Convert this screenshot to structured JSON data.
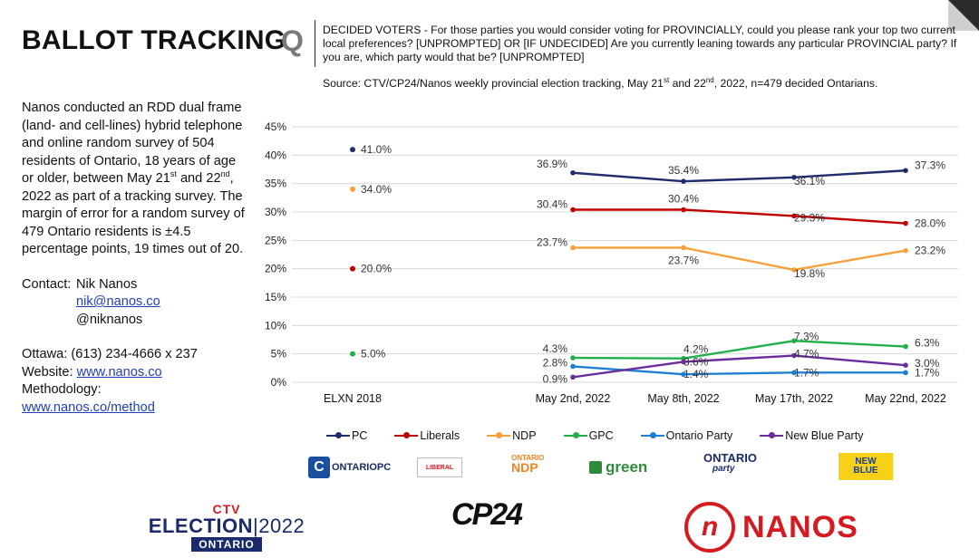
{
  "header": {
    "title": "BALLOT TRACKING",
    "q_mark": "Q",
    "question": "DECIDED VOTERS - For those parties you would consider voting for PROVINCIALLY, could you please rank your top two current local preferences? [UNPROMPTED] OR [IF UNDECIDED] Are you currently leaning towards any particular PROVINCIAL party? If you are, which party would that be? [UNPROMPTED]",
    "source_prefix": "Source: CTV/CP24/Nanos weekly provincial election tracking, May 21",
    "source_sup1": "st",
    "source_mid": " and 22",
    "source_sup2": "nd",
    "source_suffix": ", 2022, n=479 decided Ontarians."
  },
  "methodology": {
    "p1": "Nanos conducted an RDD dual frame (land- and cell-lines) hybrid telephone and online random survey of 504 residents of Ontario, 18 years of age or older, between May 21",
    "sup1": "st",
    "p2": " and 22",
    "sup2": "nd",
    "p3": ", 2022 as part of a tracking survey. The margin of error for a random survey of 479 Ontario residents is ±4.5 percentage points, 19 times out of 20."
  },
  "contact": {
    "label": "Contact:",
    "name": "Nik Nanos",
    "email": "nik@nanos.co",
    "handle": "@niknanos",
    "ottawa": "Ottawa: (613) 234-4666 x 237",
    "website_label": "Website: ",
    "website": "www.nanos.co",
    "methodology_label": "Methodology:",
    "methodology_url": "www.nanos.co/method"
  },
  "chart_data": {
    "type": "line",
    "title": "",
    "xlabel": "",
    "ylabel": "",
    "ylim": [
      0,
      45
    ],
    "yticks": [
      "0%",
      "5%",
      "10%",
      "15%",
      "20%",
      "25%",
      "30%",
      "35%",
      "40%",
      "45%"
    ],
    "grid": true,
    "baseline": {
      "label": "ELXN 2018",
      "points": [
        {
          "series": "PC",
          "value": 41.0,
          "label": "41.0%"
        },
        {
          "series": "NDP",
          "value": 34.0,
          "label": "34.0%"
        },
        {
          "series": "Liberals",
          "value": 20.0,
          "label": "20.0%"
        },
        {
          "series": "GPC",
          "value": 5.0,
          "label": "5.0%"
        }
      ]
    },
    "categories": [
      "May 2nd, 2022",
      "May 8th, 2022",
      "May 17th, 2022",
      "May 22nd, 2022"
    ],
    "series": [
      {
        "name": "PC",
        "color": "#1f2d6b",
        "values": [
          36.9,
          35.4,
          36.1,
          37.3
        ],
        "labels": [
          "36.9%",
          "35.4%",
          "36.1%",
          "37.3%"
        ]
      },
      {
        "name": "Liberals",
        "color": "#c00000",
        "values": [
          30.4,
          30.4,
          29.3,
          28.0
        ],
        "labels": [
          "30.4%",
          "30.4%",
          "29.3%",
          "28.0%"
        ]
      },
      {
        "name": "NDP",
        "color": "#f7a03a",
        "values": [
          23.7,
          23.7,
          19.8,
          23.2
        ],
        "labels": [
          "23.7%",
          "23.7%",
          "19.8%",
          "23.2%"
        ]
      },
      {
        "name": "GPC",
        "color": "#22b04b",
        "values": [
          4.3,
          4.2,
          7.3,
          6.3
        ],
        "labels": [
          "4.3%",
          "4.2%",
          "7.3%",
          "6.3%"
        ]
      },
      {
        "name": "Ontario Party",
        "color": "#1e7fd0",
        "values": [
          2.8,
          1.4,
          1.7,
          1.7
        ],
        "labels": [
          "2.8%",
          "1.4%",
          "1.7%",
          "1.7%"
        ]
      },
      {
        "name": "New Blue Party",
        "color": "#6a2d9b",
        "values": [
          0.9,
          3.6,
          4.7,
          3.0
        ],
        "labels": [
          "0.9%",
          "3.6%",
          "4.7%",
          "3.0%"
        ]
      }
    ]
  },
  "party_logos": {
    "pc": "ONTARIOPC",
    "pc_mark": "C",
    "liberal": "LIBERAL",
    "ndp_top": "ONTARIO",
    "ndp_main": "NDP",
    "green": "green",
    "op_top": "ONTARIO",
    "op_bottom": "party",
    "nb_top": "NEW",
    "nb_bottom": "BLUE"
  },
  "footer": {
    "ctv_top": "CTV",
    "ctv_election": "ELECTION",
    "ctv_year": "2022",
    "ctv_sub": "ONTARIO",
    "cp24": "CP24",
    "nanos_mark": "n",
    "nanos": "NANOS"
  }
}
